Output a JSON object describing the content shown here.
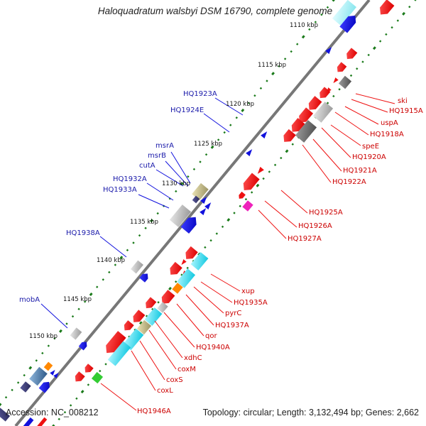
{
  "title": "Haloquadratum walsbyi DSM 16790, complete genome",
  "footer": {
    "accession": "Accession: NC_008212",
    "summary": "Topology: circular; Length: 3,132,494 bp; Genes: 2,662"
  },
  "kbp_labels": [
    "1110 kbp",
    "1115 kbp",
    "1120 kbp",
    "1125 kbp",
    "1130 kbp",
    "1135 kbp",
    "1140 kbp",
    "1145 kbp",
    "1150 kbp"
  ],
  "left_labels": [
    "HQ1923A",
    "HQ1924E",
    "msrA",
    "msrB",
    "cutA",
    "HQ1932A",
    "HQ1933A",
    "HQ1938A",
    "mobA"
  ],
  "right_labels": [
    "ski",
    "HQ1915A",
    "uspA",
    "HQ1918A",
    "speE",
    "HQ1920A",
    "HQ1921A",
    "HQ1922A",
    "HQ1925A",
    "HQ1926A",
    "HQ1927A",
    "xup",
    "HQ1935A",
    "pyrC",
    "HQ1937A",
    "qor",
    "HQ1940A",
    "xdhC",
    "coxM",
    "coxS",
    "coxL",
    "HQ1946A"
  ],
  "colors": {
    "forward_strand_label": "#1a1aaa",
    "reverse_strand_label": "#cc0000",
    "backbone": "#777777",
    "tick": "#1a7a1a",
    "cds_red": "#ee1111",
    "cds_blue": "#1111dd",
    "cds_grey": "#b0b0b0",
    "cds_cyan": "#22ddee",
    "cds_khaki": "#c8bf88",
    "cds_orange": "#ff8800",
    "cds_green": "#33cc33",
    "cds_magenta": "#ee22bb"
  }
}
